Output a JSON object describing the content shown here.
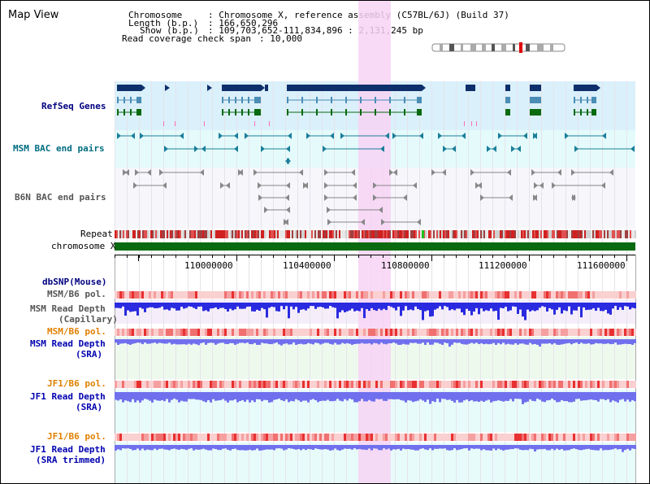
{
  "view": {
    "title": "Map View",
    "header": {
      "chromosome_label": "Chromosome",
      "chromosome_value": ": Chromosome X, reference assembly (C57BL/6J) (Build 37)",
      "length_label": "Length (b.p.)",
      "length_value": ": 166,650,296",
      "show_label": "Show (b.p.)",
      "show_value": ": 109,703,652-111,834,896 : 2,131,245 bp",
      "coverage_label": "Read coverage check span",
      "coverage_value": ": 10,000"
    },
    "tracks": {
      "refseq": "RefSeq Genes",
      "msm_bac": "MSM BAC end pairs",
      "b6n_bac": "B6N BAC end pairs",
      "repeat": "Repeat",
      "chromosome": "chromosome X",
      "dbsnp": "dbSNP(Mouse)",
      "msm_b6_pol_1": "MSM/B6 pol.",
      "msm_depth_cap_1": "MSM Read Depth",
      "msm_depth_cap_2": "(Capillary)",
      "msm_b6_pol_2": "MSM/B6 pol.",
      "msm_depth_sra_1": "MSM Read Depth",
      "msm_depth_sra_2": "(SRA)",
      "jf1_b6_pol_1": "JF1/B6 pol.",
      "jf1_depth_sra_1": "JF1 Read Depth",
      "jf1_depth_sra_2": "(SRA)",
      "jf1_b6_pol_2": "JF1/B6 pol.",
      "jf1_depth_trim_1": "JF1 Read Depth",
      "jf1_depth_trim_2": "(SRA trimmed)"
    },
    "axis": {
      "ticks": [
        "110000000",
        "110400000",
        "110800000",
        "111200000",
        "111600000"
      ]
    },
    "colors": {
      "highlight": "#f7d4f4",
      "refseq_bg": "#daf0fb",
      "msm_bac_bg": "#e5fbfb",
      "b6n_bac_bg": "#f6f6fb",
      "gene_dark": "#0d2f6b",
      "gene_mid": "#4a8db5",
      "gene_green": "#0a6a10",
      "chromosome_bar": "#0a6a10",
      "msm_depth_color": "#2a2ae0",
      "sra_depth_color": "#7070ee",
      "pol_color": "#f7b8b8"
    }
  }
}
